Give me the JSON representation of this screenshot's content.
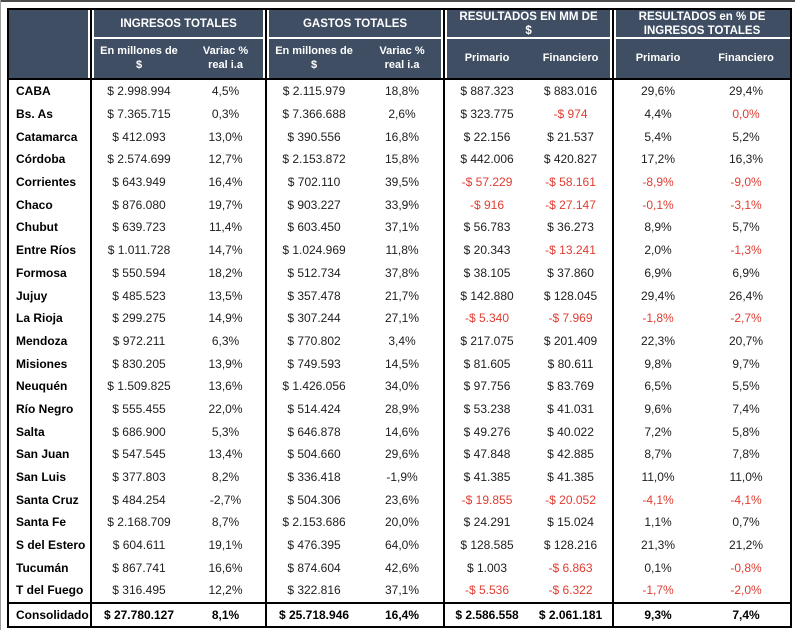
{
  "colors": {
    "header_bg": "#3f4e63",
    "header_text": "#ffffff",
    "negative_red": "#e13c30",
    "body_text": "#1d1d1d",
    "border": "#000000"
  },
  "chart_data": {
    "type": "table",
    "corner_label": "",
    "column_groups": [
      {
        "label": "INGRESOS TOTALES"
      },
      {
        "label": "GASTOS TOTALES"
      },
      {
        "label": "RESULTADOS EN MM DE $"
      },
      {
        "label": "RESULTADOS en % DE INGRESOS TOTALES"
      }
    ],
    "columns": [
      "En millones de $",
      "Variac % real i.a",
      "En millones de $",
      "Variac % real i.a",
      "Primario",
      "Financiero",
      "Primario",
      "Financiero"
    ],
    "rows": [
      {
        "name": "CABA",
        "values": [
          "$ 2.998.994",
          "4,5%",
          "$ 2.115.979",
          "18,8%",
          "$ 887.323",
          "$ 883.016",
          "29,6%",
          "29,4%"
        ],
        "red": []
      },
      {
        "name": "Bs. As",
        "values": [
          "$ 7.365.715",
          "0,3%",
          "$ 7.366.688",
          "2,6%",
          "$ 323.775",
          "-$ 974",
          "4,4%",
          "0,0%"
        ],
        "red": [
          5,
          7
        ]
      },
      {
        "name": "Catamarca",
        "values": [
          "$ 412.093",
          "13,0%",
          "$ 390.556",
          "16,8%",
          "$ 22.156",
          "$ 21.537",
          "5,4%",
          "5,2%"
        ],
        "red": []
      },
      {
        "name": "Córdoba",
        "values": [
          "$ 2.574.699",
          "12,7%",
          "$ 2.153.872",
          "15,8%",
          "$ 442.006",
          "$ 420.827",
          "17,2%",
          "16,3%"
        ],
        "red": []
      },
      {
        "name": "Corrientes",
        "values": [
          "$ 643.949",
          "16,4%",
          "$ 702.110",
          "39,5%",
          "-$ 57.229",
          "-$ 58.161",
          "-8,9%",
          "-9,0%"
        ],
        "red": [
          4,
          5,
          6,
          7
        ]
      },
      {
        "name": "Chaco",
        "values": [
          "$ 876.080",
          "19,7%",
          "$ 903.227",
          "33,9%",
          "-$ 916",
          "-$ 27.147",
          "-0,1%",
          "-3,1%"
        ],
        "red": [
          4,
          5,
          6,
          7
        ]
      },
      {
        "name": "Chubut",
        "values": [
          "$ 639.723",
          "11,4%",
          "$ 603.450",
          "37,1%",
          "$ 56.783",
          "$ 36.273",
          "8,9%",
          "5,7%"
        ],
        "red": []
      },
      {
        "name": "Entre Ríos",
        "values": [
          "$ 1.011.728",
          "14,7%",
          "$ 1.024.969",
          "11,8%",
          "$ 20.343",
          "-$ 13.241",
          "2,0%",
          "-1,3%"
        ],
        "red": [
          5,
          7
        ]
      },
      {
        "name": "Formosa",
        "values": [
          "$ 550.594",
          "18,2%",
          "$ 512.734",
          "37,8%",
          "$ 38.105",
          "$ 37.860",
          "6,9%",
          "6,9%"
        ],
        "red": []
      },
      {
        "name": "Jujuy",
        "values": [
          "$ 485.523",
          "13,5%",
          "$ 357.478",
          "21,7%",
          "$ 142.880",
          "$ 128.045",
          "29,4%",
          "26,4%"
        ],
        "red": []
      },
      {
        "name": "La Rioja",
        "values": [
          "$ 299.275",
          "14,9%",
          "$ 307.244",
          "27,1%",
          "-$ 5.340",
          "-$ 7.969",
          "-1,8%",
          "-2,7%"
        ],
        "red": [
          4,
          5,
          6,
          7
        ]
      },
      {
        "name": "Mendoza",
        "values": [
          "$ 972.211",
          "6,3%",
          "$ 770.802",
          "3,4%",
          "$ 217.075",
          "$ 201.409",
          "22,3%",
          "20,7%"
        ],
        "red": []
      },
      {
        "name": "Misiones",
        "values": [
          "$ 830.205",
          "13,9%",
          "$ 749.593",
          "14,5%",
          "$ 81.605",
          "$ 80.611",
          "9,8%",
          "9,7%"
        ],
        "red": []
      },
      {
        "name": "Neuquén",
        "values": [
          "$ 1.509.825",
          "13,6%",
          "$ 1.426.056",
          "34,0%",
          "$ 97.756",
          "$ 83.769",
          "6,5%",
          "5,5%"
        ],
        "red": []
      },
      {
        "name": "Río Negro",
        "values": [
          "$ 555.455",
          "22,0%",
          "$ 514.424",
          "28,9%",
          "$ 53.238",
          "$ 41.031",
          "9,6%",
          "7,4%"
        ],
        "red": []
      },
      {
        "name": "Salta",
        "values": [
          "$ 686.900",
          "5,3%",
          "$ 646.878",
          "14,6%",
          "$ 49.276",
          "$ 40.022",
          "7,2%",
          "5,8%"
        ],
        "red": []
      },
      {
        "name": "San Juan",
        "values": [
          "$ 547.545",
          "13,4%",
          "$ 504.660",
          "29,6%",
          "$ 47.848",
          "$ 42.885",
          "8,7%",
          "7,8%"
        ],
        "red": []
      },
      {
        "name": "San Luis",
        "values": [
          "$ 377.803",
          "8,2%",
          "$ 336.418",
          "-1,9%",
          "$ 41.385",
          "$ 41.385",
          "11,0%",
          "11,0%"
        ],
        "red": []
      },
      {
        "name": "Santa Cruz",
        "values": [
          "$ 484.254",
          "-2,7%",
          "$ 504.306",
          "23,6%",
          "-$ 19.855",
          "-$ 20.052",
          "-4,1%",
          "-4,1%"
        ],
        "red": [
          4,
          5,
          6,
          7
        ]
      },
      {
        "name": "Santa Fe",
        "values": [
          "$ 2.168.709",
          "8,7%",
          "$ 2.153.686",
          "20,0%",
          "$ 24.291",
          "$ 15.024",
          "1,1%",
          "0,7%"
        ],
        "red": []
      },
      {
        "name": "S del Estero",
        "values": [
          "$ 604.611",
          "19,1%",
          "$ 476.395",
          "64,0%",
          "$ 128.585",
          "$ 128.216",
          "21,3%",
          "21,2%"
        ],
        "red": []
      },
      {
        "name": "Tucumán",
        "values": [
          "$ 867.741",
          "16,6%",
          "$ 874.604",
          "42,6%",
          "$ 1.003",
          "-$ 6.863",
          "0,1%",
          "-0,8%"
        ],
        "red": [
          5,
          7
        ]
      },
      {
        "name": "T del Fuego",
        "values": [
          "$ 316.495",
          "12,2%",
          "$ 322.816",
          "37,1%",
          "-$ 5.536",
          "-$ 6.322",
          "-1,7%",
          "-2,0%"
        ],
        "red": [
          4,
          5,
          6,
          7
        ]
      },
      {
        "name": "Consolidado",
        "values": [
          "$ 27.780.127",
          "8,1%",
          "$ 25.718.946",
          "16,4%",
          "$ 2.586.558",
          "$ 2.061.181",
          "9,3%",
          "7,4%"
        ],
        "red": [],
        "total": true
      }
    ]
  }
}
